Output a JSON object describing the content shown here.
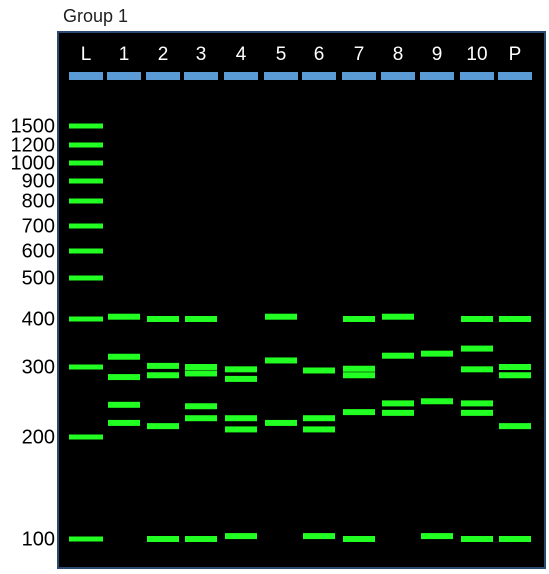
{
  "title": "Group 1",
  "ladder": [
    1500,
    1200,
    1000,
    900,
    800,
    700,
    600,
    500,
    400,
    300,
    200,
    100
  ],
  "lanes": [
    {
      "label": "L"
    },
    {
      "label": "1",
      "bands": [
        405,
        319,
        283,
        241,
        217
      ]
    },
    {
      "label": "2",
      "bands": [
        400,
        302,
        286,
        213,
        100
      ]
    },
    {
      "label": "3",
      "bands": [
        400,
        300,
        289,
        239,
        223,
        100
      ]
    },
    {
      "label": "4",
      "bands": [
        296,
        280,
        223,
        209,
        102
      ]
    },
    {
      "label": "5",
      "bands": [
        405,
        312,
        217
      ]
    },
    {
      "label": "6",
      "bands": [
        294,
        223,
        209,
        102
      ]
    },
    {
      "label": "7",
      "bands": [
        400,
        297,
        286,
        231,
        100
      ]
    },
    {
      "label": "8",
      "bands": [
        405,
        321,
        243,
        230
      ]
    },
    {
      "label": "9",
      "bands": [
        325,
        246,
        102
      ]
    },
    {
      "label": "10",
      "bands": [
        400,
        335,
        296,
        243,
        230,
        100
      ]
    },
    {
      "label": "P",
      "bands": [
        400,
        300,
        286,
        213,
        100
      ]
    }
  ]
}
